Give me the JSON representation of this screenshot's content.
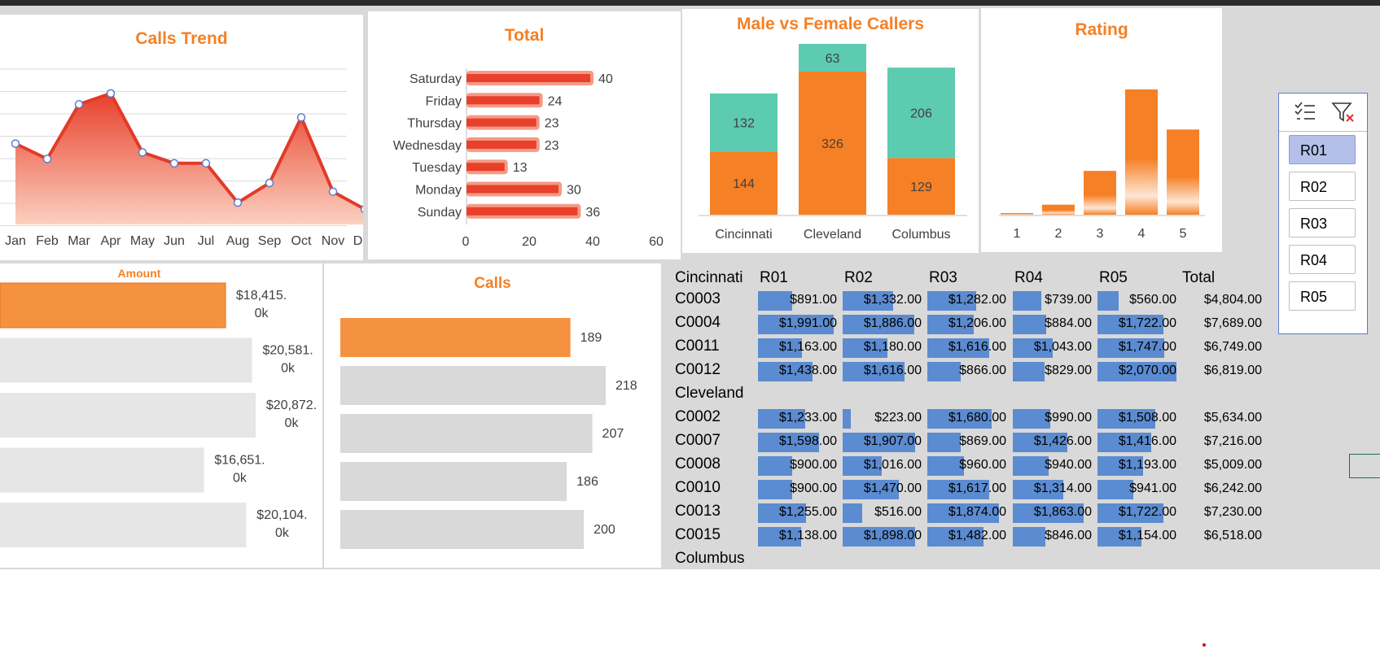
{
  "calls_trend": {
    "title": "Calls Trend",
    "months": [
      "Jan",
      "Feb",
      "Mar",
      "Apr",
      "May",
      "Jun",
      "Jul",
      "Aug",
      "Sep",
      "Oct",
      "Nov",
      "Dec"
    ],
    "values": [
      207,
      200,
      225,
      230,
      203,
      198,
      198,
      180,
      189,
      219,
      185,
      177
    ]
  },
  "total": {
    "title": "Total",
    "categories": [
      "Saturday",
      "Friday",
      "Thursday",
      "Wednesday",
      "Tuesday",
      "Monday",
      "Sunday"
    ],
    "values": [
      40,
      24,
      23,
      23,
      13,
      30,
      36
    ],
    "ticks": [
      "0",
      "20",
      "40",
      "60"
    ]
  },
  "gender": {
    "title": "Male vs Female Callers",
    "cities": [
      "Cincinnati",
      "Cleveland",
      "Columbus"
    ],
    "female": [
      132,
      63,
      206
    ],
    "male": [
      144,
      326,
      129
    ],
    "colors": {
      "female": "#5ccbb0",
      "male": "#f58025"
    }
  },
  "rating": {
    "title": "Rating",
    "labels": [
      "1",
      "2",
      "3",
      "4",
      "5"
    ],
    "values": [
      1,
      8,
      35,
      100,
      68
    ]
  },
  "amount": {
    "title": "Amount",
    "items": [
      {
        "line1": "$18,415.",
        "line2": "0k",
        "value": 18415,
        "highlight": true
      },
      {
        "line1": "$20,581.",
        "line2": "0k",
        "value": 20581,
        "highlight": false
      },
      {
        "line1": "$20,872.",
        "line2": "0k",
        "value": 20872,
        "highlight": false
      },
      {
        "line1": "$16,651.",
        "line2": "0k",
        "value": 16651,
        "highlight": false
      },
      {
        "line1": "$20,104.",
        "line2": "0k",
        "value": 20104,
        "highlight": false
      }
    ]
  },
  "calls": {
    "title": "Calls",
    "items": [
      {
        "label": "189",
        "value": 189,
        "highlight": true
      },
      {
        "label": "218",
        "value": 218,
        "highlight": false
      },
      {
        "label": "207",
        "value": 207,
        "highlight": false
      },
      {
        "label": "186",
        "value": 186,
        "highlight": false
      },
      {
        "label": "200",
        "value": 200,
        "highlight": false
      }
    ]
  },
  "table": {
    "headers": [
      "R01",
      "R02",
      "R03",
      "R04",
      "R05",
      "Total"
    ],
    "rows": [
      {
        "label": "Cincinnati",
        "group": true
      },
      {
        "label": "C0003",
        "vals": [
          891,
          1332,
          1282,
          739,
          560
        ],
        "texts": [
          "$891.00",
          "$1,332.00",
          "$1,282.00",
          "$739.00",
          "$560.00"
        ],
        "total": "$4,804.00"
      },
      {
        "label": "C0004",
        "vals": [
          1991,
          1886,
          1206,
          884,
          1722
        ],
        "texts": [
          "$1,991.00",
          "$1,886.00",
          "$1,206.00",
          "$884.00",
          "$1,722.00"
        ],
        "total": "$7,689.00"
      },
      {
        "label": "C0011",
        "vals": [
          1163,
          1180,
          1616,
          1043,
          1747
        ],
        "texts": [
          "$1,163.00",
          "$1,180.00",
          "$1,616.00",
          "$1,043.00",
          "$1,747.00"
        ],
        "total": "$6,749.00"
      },
      {
        "label": "C0012",
        "vals": [
          1438,
          1616,
          866,
          829,
          2070
        ],
        "texts": [
          "$1,438.00",
          "$1,616.00",
          "$866.00",
          "$829.00",
          "$2,070.00"
        ],
        "total": "$6,819.00"
      },
      {
        "label": "Cleveland",
        "group": true
      },
      {
        "label": "C0002",
        "vals": [
          1233,
          223,
          1680,
          990,
          1508
        ],
        "texts": [
          "$1,233.00",
          "$223.00",
          "$1,680.00",
          "$990.00",
          "$1,508.00"
        ],
        "total": "$5,634.00"
      },
      {
        "label": "C0007",
        "vals": [
          1598,
          1907,
          869,
          1426,
          1416
        ],
        "texts": [
          "$1,598.00",
          "$1,907.00",
          "$869.00",
          "$1,426.00",
          "$1,416.00"
        ],
        "total": "$7,216.00"
      },
      {
        "label": "C0008",
        "vals": [
          900,
          1016,
          960,
          940,
          1193
        ],
        "texts": [
          "$900.00",
          "$1,016.00",
          "$960.00",
          "$940.00",
          "$1,193.00"
        ],
        "total": "$5,009.00"
      },
      {
        "label": "C0010",
        "vals": [
          900,
          1470,
          1617,
          1314,
          941
        ],
        "texts": [
          "$900.00",
          "$1,470.00",
          "$1,617.00",
          "$1,314.00",
          "$941.00"
        ],
        "total": "$6,242.00"
      },
      {
        "label": "C0013",
        "vals": [
          1255,
          516,
          1874,
          1863,
          1722
        ],
        "texts": [
          "$1,255.00",
          "$516.00",
          "$1,874.00",
          "$1,863.00",
          "$1,722.00"
        ],
        "total": "$7,230.00"
      },
      {
        "label": "C0015",
        "vals": [
          1138,
          1898,
          1482,
          846,
          1154
        ],
        "texts": [
          "$1,138.00",
          "$1,898.00",
          "$1,482.00",
          "$846.00",
          "$1,154.00"
        ],
        "total": "$6,518.00"
      },
      {
        "label": "Columbus",
        "group": true
      }
    ]
  },
  "slicer": {
    "items": [
      "R01",
      "R02",
      "R03",
      "R04",
      "R05"
    ],
    "selected": "R01",
    "icons": [
      "multi-select-icon",
      "clear-filter-icon"
    ]
  },
  "colors": {
    "accent": "#f58025",
    "databar": "#5b8bd0",
    "selected": "#b4c0ea"
  }
}
